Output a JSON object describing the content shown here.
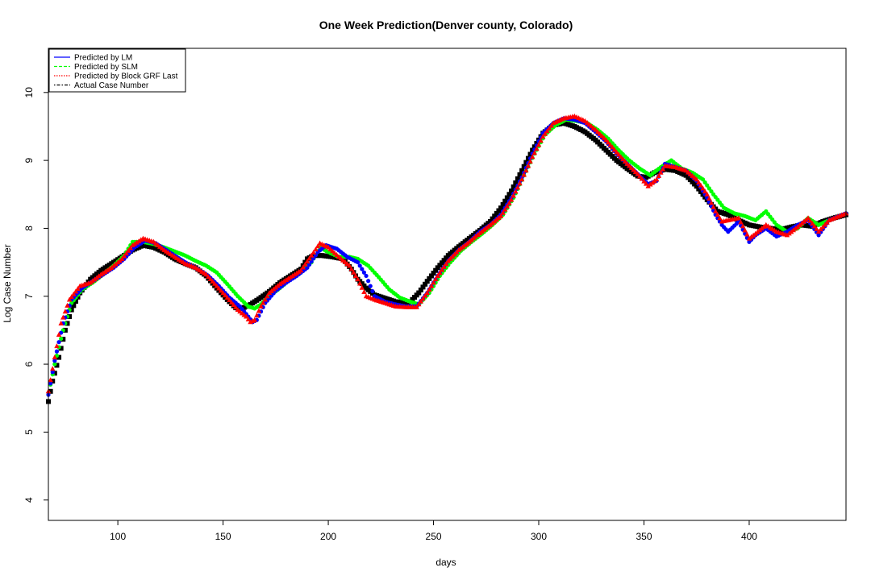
{
  "chart_data": {
    "type": "scatter",
    "title": "One Week Prediction(Denver county, Colorado)",
    "xlabel": "days",
    "ylabel": "Log Case Number",
    "xlim": [
      67,
      446
    ],
    "ylim": [
      3.7,
      10.65
    ],
    "xticks": [
      100,
      150,
      200,
      250,
      300,
      350,
      400
    ],
    "yticks": [
      4,
      5,
      6,
      7,
      8,
      9,
      10
    ],
    "grid": false,
    "legend_position": "top-left",
    "legend": [
      {
        "label": "Predicted by LM",
        "color": "#0000ff",
        "line_style": "solid"
      },
      {
        "label": "Predicted by SLM",
        "color": "#00ff00",
        "line_style": "dashed"
      },
      {
        "label": "Predicted by Block GRF Last",
        "color": "#ff0000",
        "line_style": "dotted"
      },
      {
        "label": "Actual Case Number",
        "color": "#000000",
        "line_style": "dotdash"
      }
    ],
    "series": [
      {
        "name": "Actual Case Number",
        "color": "#000000",
        "marker": "square",
        "x": [
          67,
          69,
          72,
          75,
          78,
          82,
          87,
          92,
          97,
          102,
          107,
          112,
          117,
          122,
          127,
          132,
          137,
          142,
          147,
          152,
          156,
          159,
          163,
          167,
          172,
          177,
          182,
          187,
          190,
          193,
          197,
          202,
          207,
          211,
          214,
          218,
          222,
          227,
          232,
          236,
          239,
          243,
          247,
          252,
          257,
          262,
          267,
          272,
          277,
          282,
          287,
          292,
          297,
          302,
          307,
          312,
          317,
          322,
          327,
          332,
          337,
          342,
          347,
          351,
          355,
          360,
          365,
          370,
          375,
          380,
          385,
          390,
          395,
          400,
          405,
          410,
          415,
          420,
          425,
          430,
          435,
          440,
          446
        ],
        "y": [
          5.45,
          5.75,
          6.1,
          6.5,
          6.8,
          7.05,
          7.25,
          7.38,
          7.48,
          7.58,
          7.68,
          7.75,
          7.72,
          7.65,
          7.55,
          7.48,
          7.42,
          7.3,
          7.12,
          6.95,
          6.83,
          6.82,
          6.88,
          6.96,
          7.07,
          7.2,
          7.3,
          7.4,
          7.55,
          7.6,
          7.6,
          7.58,
          7.55,
          7.4,
          7.25,
          7.12,
          7.02,
          6.97,
          6.92,
          6.9,
          6.92,
          7.05,
          7.22,
          7.42,
          7.6,
          7.73,
          7.85,
          7.97,
          8.1,
          8.3,
          8.55,
          8.85,
          9.15,
          9.4,
          9.52,
          9.55,
          9.5,
          9.42,
          9.3,
          9.15,
          9.0,
          8.88,
          8.77,
          8.75,
          8.82,
          8.87,
          8.85,
          8.78,
          8.62,
          8.42,
          8.25,
          8.2,
          8.12,
          8.05,
          8.02,
          8.0,
          7.98,
          8.02,
          8.05,
          8.03,
          8.1,
          8.15,
          8.2
        ]
      },
      {
        "name": "Predicted by SLM",
        "color": "#00ff00",
        "marker": "circle",
        "x": [
          67,
          70,
          74,
          78,
          83,
          88,
          93,
          98,
          103,
          107,
          112,
          117,
          122,
          127,
          132,
          137,
          142,
          147,
          152,
          157,
          162,
          165,
          168,
          172,
          177,
          182,
          187,
          192,
          196,
          200,
          205,
          210,
          214,
          219,
          224,
          229,
          234,
          239,
          243,
          248,
          253,
          258,
          263,
          268,
          273,
          278,
          283,
          288,
          293,
          298,
          303,
          308,
          313,
          318,
          323,
          328,
          333,
          338,
          343,
          348,
          353,
          358,
          363,
          368,
          373,
          378,
          383,
          388,
          393,
          398,
          403,
          408,
          413,
          418,
          423,
          428,
          433,
          438,
          446
        ],
        "y": [
          5.55,
          6.0,
          6.5,
          6.9,
          7.1,
          7.2,
          7.32,
          7.45,
          7.6,
          7.8,
          7.8,
          7.77,
          7.72,
          7.66,
          7.6,
          7.52,
          7.45,
          7.35,
          7.18,
          7.0,
          6.85,
          6.82,
          6.88,
          7.0,
          7.12,
          7.25,
          7.35,
          7.5,
          7.72,
          7.65,
          7.58,
          7.58,
          7.55,
          7.45,
          7.28,
          7.1,
          6.98,
          6.92,
          6.88,
          7.05,
          7.3,
          7.5,
          7.67,
          7.8,
          7.92,
          8.05,
          8.2,
          8.45,
          8.78,
          9.1,
          9.38,
          9.52,
          9.6,
          9.58,
          9.55,
          9.45,
          9.32,
          9.15,
          9.0,
          8.88,
          8.78,
          8.9,
          9.0,
          8.88,
          8.82,
          8.72,
          8.5,
          8.3,
          8.22,
          8.18,
          8.12,
          8.25,
          8.05,
          7.95,
          8.0,
          8.15,
          8.05,
          8.12,
          8.22
        ]
      },
      {
        "name": "Predicted by LM",
        "color": "#0000ff",
        "marker": "circle",
        "x": [
          67,
          70,
          74,
          78,
          83,
          88,
          93,
          98,
          103,
          108,
          113,
          118,
          123,
          128,
          133,
          138,
          143,
          148,
          153,
          158,
          162,
          164,
          166,
          170,
          175,
          180,
          185,
          190,
          195,
          199,
          204,
          209,
          214,
          218,
          222,
          227,
          232,
          237,
          242,
          247,
          252,
          257,
          262,
          267,
          272,
          277,
          282,
          287,
          292,
          297,
          302,
          307,
          312,
          317,
          322,
          327,
          332,
          337,
          342,
          347,
          352,
          356,
          360,
          365,
          370,
          375,
          380,
          384,
          387,
          390,
          395,
          400,
          403,
          408,
          413,
          418,
          423,
          428,
          433,
          438,
          446
        ],
        "y": [
          5.55,
          6.05,
          6.6,
          6.95,
          7.12,
          7.22,
          7.32,
          7.42,
          7.55,
          7.72,
          7.82,
          7.78,
          7.68,
          7.58,
          7.48,
          7.4,
          7.3,
          7.15,
          6.98,
          6.85,
          6.7,
          6.62,
          6.65,
          6.9,
          7.08,
          7.2,
          7.3,
          7.42,
          7.65,
          7.75,
          7.7,
          7.58,
          7.5,
          7.3,
          7.0,
          6.92,
          6.88,
          6.85,
          6.85,
          7.05,
          7.3,
          7.52,
          7.68,
          7.8,
          7.95,
          8.05,
          8.2,
          8.45,
          8.75,
          9.1,
          9.4,
          9.55,
          9.62,
          9.6,
          9.55,
          9.42,
          9.28,
          9.1,
          8.95,
          8.8,
          8.65,
          8.7,
          8.95,
          8.9,
          8.85,
          8.7,
          8.45,
          8.2,
          8.05,
          7.95,
          8.1,
          7.8,
          7.9,
          8.0,
          7.88,
          7.95,
          8.05,
          8.12,
          7.9,
          8.12,
          8.22
        ]
      },
      {
        "name": "Predicted by Block GRF Last",
        "color": "#ff0000",
        "marker": "triangle",
        "x": [
          67,
          70,
          73,
          77,
          82,
          87,
          92,
          97,
          102,
          107,
          112,
          117,
          122,
          127,
          132,
          137,
          142,
          147,
          152,
          157,
          161,
          163,
          165,
          168,
          172,
          177,
          182,
          187,
          192,
          196,
          200,
          205,
          210,
          214,
          218,
          222,
          227,
          232,
          237,
          242,
          247,
          252,
          257,
          262,
          267,
          272,
          277,
          282,
          287,
          292,
          297,
          302,
          307,
          312,
          317,
          322,
          327,
          332,
          337,
          342,
          347,
          352,
          356,
          360,
          365,
          370,
          375,
          380,
          384,
          387,
          390,
          395,
          400,
          403,
          408,
          413,
          418,
          423,
          428,
          433,
          438,
          446
        ],
        "y": [
          5.6,
          6.1,
          6.6,
          6.95,
          7.15,
          7.2,
          7.32,
          7.42,
          7.55,
          7.75,
          7.85,
          7.8,
          7.68,
          7.58,
          7.48,
          7.42,
          7.32,
          7.15,
          6.98,
          6.8,
          6.7,
          6.62,
          6.65,
          6.85,
          7.05,
          7.18,
          7.28,
          7.38,
          7.6,
          7.78,
          7.72,
          7.58,
          7.45,
          7.25,
          7.0,
          6.95,
          6.9,
          6.85,
          6.84,
          6.84,
          7.05,
          7.3,
          7.52,
          7.68,
          7.8,
          7.93,
          8.05,
          8.18,
          8.42,
          8.72,
          9.05,
          9.35,
          9.55,
          9.62,
          9.65,
          9.58,
          9.45,
          9.3,
          9.12,
          8.95,
          8.8,
          8.62,
          8.72,
          8.92,
          8.9,
          8.85,
          8.72,
          8.5,
          8.25,
          8.1,
          8.12,
          8.15,
          7.85,
          7.92,
          8.05,
          7.95,
          7.9,
          8.02,
          8.15,
          7.95,
          8.12,
          8.22
        ]
      }
    ]
  }
}
